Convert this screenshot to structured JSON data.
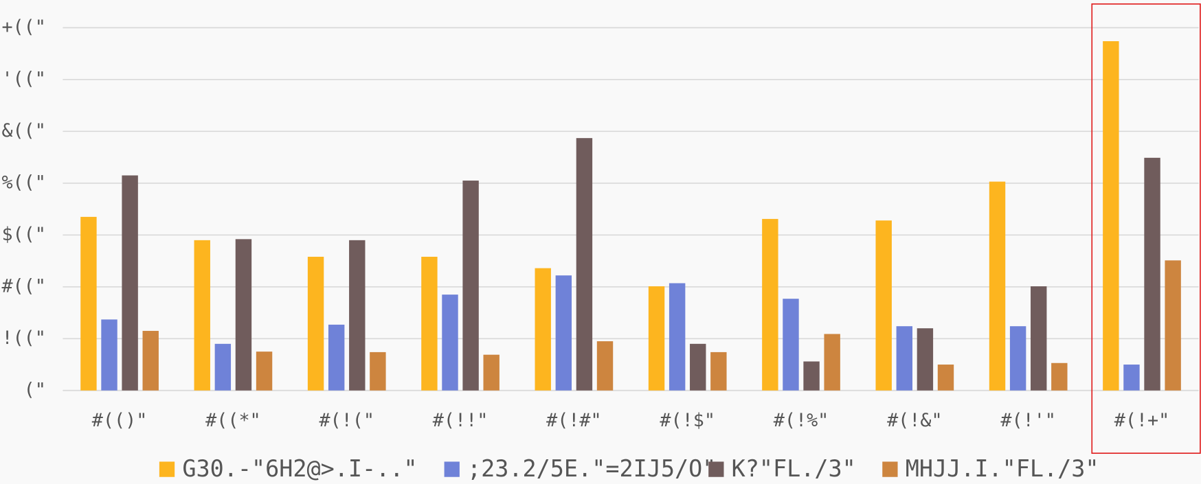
{
  "chart_data": {
    "type": "bar",
    "categories": [
      "#(()\"",
      "#((*\"",
      "#(!(\"",
      "#(!!\"",
      "#(!#\"",
      "#(!$\"",
      "#(!%\"",
      "#(!&\"",
      "#(!'\"",
      "#(!+\""
    ],
    "series": [
      {
        "name": "G30.-\"6H2@>.I-..\"",
        "color": "#fdb51f",
        "values": [
          335,
          290,
          258,
          258,
          236,
          201,
          331,
          328,
          403,
          674
        ]
      },
      {
        "name": ";23.2/5E.\"=2IJ5/O\"",
        "color": "#6f82d8",
        "values": [
          137,
          90,
          127,
          185,
          222,
          207,
          177,
          124,
          124,
          50
        ]
      },
      {
        "name": "K?\"FL./3\"",
        "color": "#705c5c",
        "values": [
          415,
          292,
          290,
          405,
          487,
          90,
          56,
          120,
          201,
          449
        ]
      },
      {
        "name": "MHJJ.I.\"FL./3\"",
        "color": "#cd853f",
        "values": [
          115,
          75,
          74,
          69,
          95,
          74,
          109,
          50,
          53,
          251
        ]
      }
    ],
    "ylim": [
      0,
      700
    ],
    "yticks": [
      {
        "value": 0,
        "label": "(\""
      },
      {
        "value": 100,
        "label": "!((\""
      },
      {
        "value": 200,
        "label": "#((\""
      },
      {
        "value": 300,
        "label": "$((\""
      },
      {
        "value": 400,
        "label": "%((\""
      },
      {
        "value": 500,
        "label": "&((\""
      },
      {
        "value": 600,
        "label": "'((\""
      },
      {
        "value": 700,
        "label": "+((\""
      }
    ],
    "grid": true,
    "legend": "bottom"
  }
}
